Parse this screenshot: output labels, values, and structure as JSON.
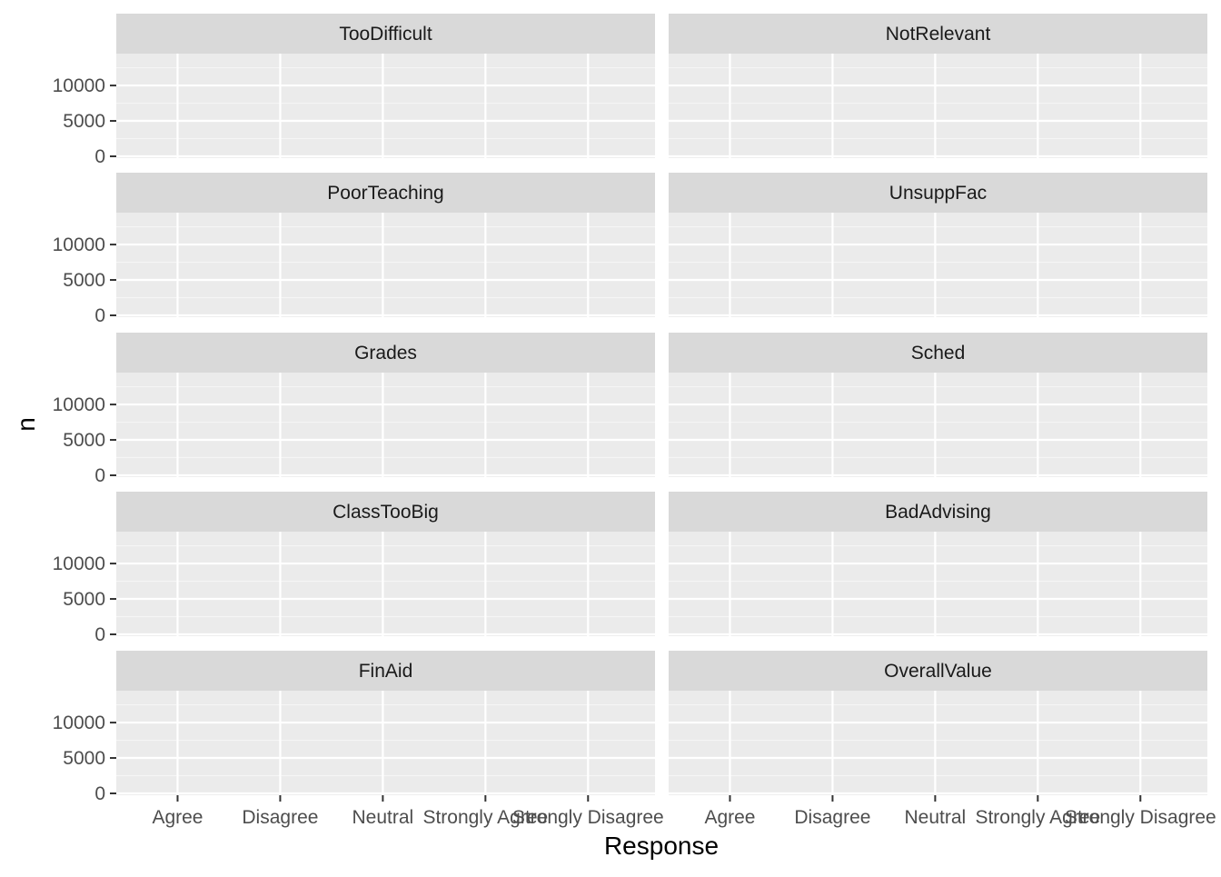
{
  "chart_data": {
    "type": "bar",
    "xlabel": "Response",
    "ylabel": "n",
    "categories": [
      "Agree",
      "Disagree",
      "Neutral",
      "Strongly Agree",
      "Strongly Disagree"
    ],
    "y_ticks": [
      0,
      5000,
      10000
    ],
    "y_tick_labels": [
      "0",
      "5000",
      "10000"
    ],
    "ylim": [
      0,
      14500
    ],
    "grid": true,
    "facets": [
      {
        "label": "TooDifficult"
      },
      {
        "label": "NotRelevant"
      },
      {
        "label": "PoorTeaching"
      },
      {
        "label": "UnsuppFac"
      },
      {
        "label": "Grades"
      },
      {
        "label": "Sched"
      },
      {
        "label": "ClassTooBig"
      },
      {
        "label": "BadAdvising"
      },
      {
        "label": "FinAid"
      },
      {
        "label": "OverallValue"
      }
    ]
  }
}
